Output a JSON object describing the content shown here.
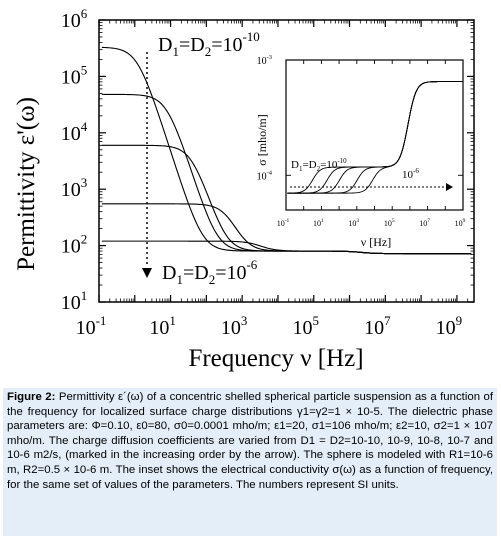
{
  "chart_data": [
    {
      "type": "line",
      "xlabel": "Frequency  ν  [Hz]",
      "ylabel": "Permittivity ε'(ω)",
      "x_scale": "log",
      "y_scale": "log",
      "xlim": [
        0.1,
        3000000000
      ],
      "ylim": [
        10,
        1000000
      ],
      "x_ticks": [
        {
          "value": 0.1,
          "base": "10",
          "exp": "-1"
        },
        {
          "value": 10,
          "base": "10",
          "exp": "1"
        },
        {
          "value": 1000,
          "base": "10",
          "exp": "3"
        },
        {
          "value": 100000,
          "base": "10",
          "exp": "5"
        },
        {
          "value": 10000000,
          "base": "10",
          "exp": "7"
        },
        {
          "value": 1000000000,
          "base": "10",
          "exp": "9"
        }
      ],
      "y_ticks": [
        {
          "value": 10,
          "base": "10",
          "exp": "1"
        },
        {
          "value": 100,
          "base": "10",
          "exp": "2"
        },
        {
          "value": 1000,
          "base": "10",
          "exp": "3"
        },
        {
          "value": 10000,
          "base": "10",
          "exp": "4"
        },
        {
          "value": 100000,
          "base": "10",
          "exp": "5"
        },
        {
          "value": 1000000,
          "base": "10",
          "exp": "6"
        }
      ],
      "series": [
        {
          "low_freq_permittivity": 330000,
          "relaxation_freq": 1.2
        },
        {
          "low_freq_permittivity": 48000,
          "relaxation_freq": 8
        },
        {
          "low_freq_permittivity": 6000,
          "relaxation_freq": 40
        },
        {
          "low_freq_permittivity": 550,
          "relaxation_freq": 400
        },
        {
          "low_freq_permittivity": 120,
          "relaxation_freq": 3000
        }
      ],
      "high_freq_plateau": 80,
      "final_plateau": 72,
      "annotations": {
        "top_label": "D1=D2=10^-10",
        "bottom_label": "D1=D2=10^-6",
        "arrow": "increasing D"
      }
    },
    {
      "type": "line",
      "inset": true,
      "xlabel": "ν [Hz]",
      "ylabel": "σ [mho/m]",
      "x_scale": "log",
      "y_scale": "log",
      "xlim": [
        0.1,
        1000000000
      ],
      "ylim": [
        5e-05,
        0.001
      ],
      "x_ticks": [
        "-1",
        "1",
        "3",
        "5",
        "7",
        "9"
      ],
      "y_ticks": [
        {
          "value": 0.0001,
          "base": "10",
          "exp": "-4"
        },
        {
          "value": 0.001,
          "base": "10",
          "exp": "-3"
        }
      ],
      "low_freq_conductivity": 7e-05,
      "mid_conductivity": 0.000118,
      "high_freq_conductivity": 0.00065,
      "series_steps": [
        1.2,
        8,
        40,
        400,
        3000
      ],
      "annotations": {
        "left_label": "D1=D2=10^-10",
        "right_label": "10^-6"
      }
    }
  ],
  "labels": {
    "top_D": {
      "D": "D",
      "sub1": "1",
      "mid": "=D",
      "sub2": "2",
      "eq": "=10",
      "exp": "-10"
    },
    "bottom_D": {
      "D": "D",
      "sub1": "1",
      "mid": "=D",
      "sub2": "2",
      "eq": "=10",
      "exp": "-6"
    },
    "inset_left_D": {
      "D": "D",
      "sub1": "1",
      "mid": "=D",
      "sub2": "2",
      "eq": "=10",
      "exp": "-10"
    },
    "inset_right": {
      "base": "10",
      "exp": "-6"
    },
    "y_axis_title": "Permittivity ε'(ω)",
    "x_axis_title": "Frequency  ν  [Hz]",
    "inset_y_title": "σ [mho/m]",
    "inset_x_title": "ν [Hz]"
  },
  "caption": {
    "label": "Figure 2:",
    "text": " Permittivity ε´(ω) of a concentric shelled spherical particle suspension as a function of the frequency for localized surface charge distributions γ1=γ2=1 × 10-5. The dielectric phase parameters are: Φ=0.10, ε0=80, σ0=0.0001 mho/m; ε1=20, σ1=106 mho/m; ε2=10, σ2=1 × 107 mho/m. The charge diffusion coefficients are varied from D1 = D2=10-10, 10-9, 10-8, 10-7 and 10-6 m2/s, (marked in the increasing order by the arrow). The sphere is modeled with R1=10-6 m, R2=0.5 × 10-6 m. The inset shows the electrical conductivity σ(ω) as a function of frequency, for the same set of values of the parameters. The numbers represent SI units."
  }
}
